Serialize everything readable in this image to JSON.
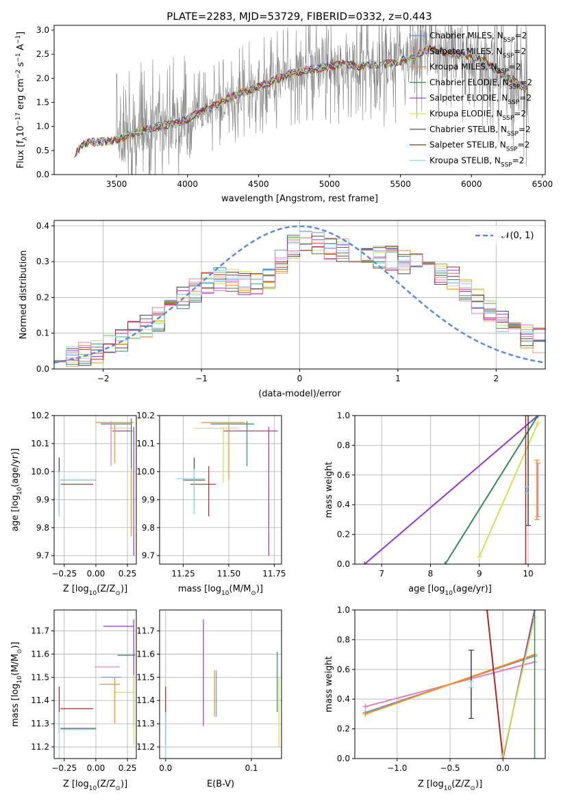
{
  "figure_title": "PLATE=2283, MJD=53729, FIBERID=0332, z=0.443",
  "colors": {
    "chabrier_miles": "#6495ed",
    "salpeter_miles": "#e9967a",
    "kroupa_miles": "#ff8c00",
    "chabrier_elodie": "#2e8b57",
    "salpeter_elodie": "#9932cc",
    "kroupa_elodie": "#c5e84a",
    "chabrier_stelib": "#404040",
    "salpeter_stelib": "#b22222",
    "kroupa_stelib": "#8fd8e8",
    "pink": "#e77fb5",
    "data": "#808080",
    "gaussian": "#5b8bd8"
  },
  "chart_data": [
    {
      "id": "spectrum",
      "type": "line",
      "xlabel": "wavelength [Angstrom, rest frame]",
      "ylabel_parts": [
        "Flux [f",
        "λ",
        "10",
        "−17",
        " erg cm",
        "−2",
        " s",
        "−1",
        " A",
        "−1",
        "]"
      ],
      "xlim": [
        3060,
        6520
      ],
      "ylim": [
        0,
        3.1
      ],
      "xticks": [
        3500,
        4000,
        4500,
        5000,
        5500,
        6000,
        6500
      ],
      "yticks": [
        0.0,
        0.5,
        1.0,
        1.5,
        2.0,
        2.5,
        3.0
      ],
      "x_range": [
        3200,
        6400
      ],
      "continuum_x": [
        3200,
        3250,
        3300,
        3400,
        3500,
        3600,
        3700,
        3800,
        3900,
        4000,
        4100,
        4200,
        4300,
        4400,
        4500,
        4600,
        4700,
        4800,
        4900,
        5000,
        5100,
        5200,
        5300,
        5400,
        5500,
        5600,
        5700,
        5800,
        5900,
        6000,
        6100,
        6200,
        6300,
        6400
      ],
      "continuum_y": [
        0.35,
        0.62,
        0.67,
        0.68,
        0.72,
        0.83,
        0.93,
        1.0,
        1.05,
        1.15,
        1.3,
        1.45,
        1.6,
        1.72,
        1.82,
        1.95,
        2.08,
        2.15,
        2.2,
        2.25,
        2.3,
        2.25,
        2.28,
        2.3,
        2.35,
        2.45,
        2.6,
        2.55,
        2.5,
        2.45,
        2.35,
        2.1,
        1.95,
        1.75
      ],
      "legend": [
        {
          "label": "Chabrier MILES, N",
          "sub": "SSP",
          "tail": "=2",
          "color": "#6495ed"
        },
        {
          "label": "Salpeter MILES, N",
          "sub": "SSP",
          "tail": "=2",
          "color": "#e9967a"
        },
        {
          "label": "Kroupa MILES, N",
          "sub": "SSP",
          "tail": "=2",
          "color": "#ff8c00"
        },
        {
          "label": "Chabrier ELODIE, N",
          "sub": "SSP",
          "tail": "=2",
          "color": "#2e8b57"
        },
        {
          "label": "Salpeter ELODIE, N",
          "sub": "SSP",
          "tail": "=2",
          "color": "#9932cc"
        },
        {
          "label": "Kroupa ELODIE, N",
          "sub": "SSP",
          "tail": "=2",
          "color": "#c5e84a"
        },
        {
          "label": "Chabrier STELIB, N",
          "sub": "SSP",
          "tail": "=2",
          "color": "#404040"
        },
        {
          "label": "Salpeter STELIB, N",
          "sub": "SSP",
          "tail": "=2",
          "color": "#b22222"
        },
        {
          "label": "Kroupa STELIB, N",
          "sub": "SSP",
          "tail": "=2",
          "color": "#8fd8e8"
        }
      ]
    },
    {
      "id": "residuals",
      "type": "histogram",
      "xlabel": "(data-model)/error",
      "ylabel": "Normed distribution",
      "xlim": [
        -2.5,
        2.5
      ],
      "ylim": [
        0,
        0.415
      ],
      "xticks": [
        -2,
        -1,
        0,
        1,
        2
      ],
      "yticks": [
        0.0,
        0.1,
        0.2,
        0.3,
        0.4
      ],
      "bins": 40,
      "legend_label": "𝒩(0, 1)",
      "base_x": [
        -2.4375,
        -2.3125,
        -2.1875,
        -2.0625,
        -1.9375,
        -1.8125,
        -1.6875,
        -1.5625,
        -1.4375,
        -1.3125,
        -1.1875,
        -1.0625,
        -0.9375,
        -0.8125,
        -0.6875,
        -0.5625,
        -0.4375,
        -0.3125,
        -0.1875,
        -0.0625,
        0.0625,
        0.1875,
        0.3125,
        0.4375,
        0.5625,
        0.6875,
        0.8125,
        0.9375,
        1.0625,
        1.1875,
        1.3125,
        1.4375,
        1.5625,
        1.6875,
        1.8125,
        1.9375,
        2.0625,
        2.1875,
        2.3125,
        2.4375
      ],
      "base_y": [
        0.03,
        0.04,
        0.04,
        0.05,
        0.06,
        0.08,
        0.1,
        0.12,
        0.14,
        0.17,
        0.2,
        0.22,
        0.24,
        0.25,
        0.25,
        0.24,
        0.24,
        0.25,
        0.3,
        0.34,
        0.36,
        0.35,
        0.34,
        0.33,
        0.32,
        0.31,
        0.31,
        0.31,
        0.3,
        0.3,
        0.29,
        0.27,
        0.25,
        0.22,
        0.19,
        0.16,
        0.13,
        0.11,
        0.09,
        0.08
      ]
    },
    {
      "id": "age-vs-Z",
      "type": "errorbar",
      "xlabel_parts": [
        "Z [log",
        "10",
        "(Z/Z",
        "⊙",
        ")]"
      ],
      "ylabel_parts": [
        "age  [log",
        "10",
        "(age/yr)]"
      ],
      "xlim": [
        -0.33,
        0.32
      ],
      "ylim": [
        9.67,
        10.2
      ],
      "xticks": [
        -0.25,
        0.0,
        0.25
      ],
      "xticklabels": [
        "−0.25",
        "0.00",
        "0.25"
      ],
      "yticks": [
        9.7,
        9.8,
        9.9,
        10.0,
        10.1,
        10.2
      ],
      "points": [
        {
          "x": -0.15,
          "xerr": 0.13,
          "y": 9.955,
          "yerr": 0.0,
          "color": "#b22222"
        },
        {
          "x": -0.14,
          "xerr": 0.14,
          "y": 9.97,
          "yerr": 0.0,
          "color": "#404040"
        },
        {
          "x": -0.14,
          "xerr": 0.14,
          "y": 9.97,
          "yerr": 0.0,
          "color": "#8fd8e8"
        },
        {
          "x": -0.29,
          "xerr": 0.0,
          "y": 9.95,
          "yerr": 0.1,
          "color": "#404040"
        },
        {
          "x": -0.29,
          "xerr": 0.0,
          "y": 9.92,
          "yerr": 0.08,
          "color": "#8fd8e8"
        },
        {
          "x": 0.15,
          "xerr": 0.15,
          "y": 10.175,
          "yerr": 0.0,
          "color": "#ff8c00"
        },
        {
          "x": 0.16,
          "xerr": 0.12,
          "y": 10.17,
          "yerr": 0.0,
          "color": "#2e8b57"
        },
        {
          "x": 0.21,
          "xerr": 0.08,
          "y": 10.145,
          "yerr": 0.0,
          "color": "#9932cc"
        },
        {
          "x": 0.2,
          "xerr": 0.09,
          "y": 10.155,
          "yerr": 0.0,
          "color": "#c5e84a"
        },
        {
          "x": 0.12,
          "xerr": 0.0,
          "y": 10.1,
          "yerr": 0.08,
          "color": "#e77fb5"
        },
        {
          "x": 0.15,
          "xerr": 0.0,
          "y": 10.1,
          "yerr": 0.07,
          "color": "#ff8c00"
        },
        {
          "x": 0.3,
          "xerr": 0.0,
          "y": 9.93,
          "yerr": 0.23,
          "color": "#9932cc"
        },
        {
          "x": 0.28,
          "xerr": 0.0,
          "y": 9.97,
          "yerr": 0.2,
          "color": "#ff8c00"
        },
        {
          "x": 0.28,
          "xerr": 0.0,
          "y": 10.1,
          "yerr": 0.09,
          "color": "#2e8b57"
        }
      ]
    },
    {
      "id": "age-vs-mass",
      "type": "errorbar",
      "xlabel_parts": [
        "mass [log",
        "10",
        "(M/M",
        "⊙",
        ")]"
      ],
      "ylabel": "",
      "xlim": [
        11.12,
        11.79
      ],
      "ylim": [
        9.67,
        10.2
      ],
      "xticks": [
        11.25,
        11.5,
        11.75
      ],
      "xticklabels": [
        "11.25",
        "11.50",
        "11.75"
      ],
      "yticks": [
        9.7,
        9.8,
        9.9,
        10.0,
        10.1,
        10.2
      ],
      "points": [
        {
          "x": 11.36,
          "xerr": 0.07,
          "y": 9.955,
          "yerr": 0.0,
          "color": "#b22222"
        },
        {
          "x": 11.31,
          "xerr": 0.06,
          "y": 9.97,
          "yerr": 0.0,
          "color": "#404040"
        },
        {
          "x": 11.29,
          "xerr": 0.08,
          "y": 9.975,
          "yerr": 0.0,
          "color": "#8fd8e8"
        },
        {
          "x": 11.31,
          "xerr": 0.0,
          "y": 9.95,
          "yerr": 0.1,
          "color": "#404040"
        },
        {
          "x": 11.31,
          "xerr": 0.0,
          "y": 9.93,
          "yerr": 0.08,
          "color": "#8fd8e8"
        },
        {
          "x": 11.39,
          "xerr": 0.0,
          "y": 9.93,
          "yerr": 0.09,
          "color": "#b22222"
        },
        {
          "x": 11.47,
          "xerr": 0.12,
          "y": 10.175,
          "yerr": 0.0,
          "color": "#ff8c00"
        },
        {
          "x": 11.52,
          "xerr": 0.12,
          "y": 10.17,
          "yerr": 0.0,
          "color": "#2e8b57"
        },
        {
          "x": 11.43,
          "xerr": 0.12,
          "y": 10.155,
          "yerr": 0.0,
          "color": "#c5e84a"
        },
        {
          "x": 11.62,
          "xerr": 0.15,
          "y": 10.145,
          "yerr": 0.0,
          "color": "#9932cc"
        },
        {
          "x": 11.5,
          "xerr": 0.0,
          "y": 10.07,
          "yerr": 0.1,
          "color": "#ff8c00"
        },
        {
          "x": 11.6,
          "xerr": 0.0,
          "y": 10.1,
          "yerr": 0.08,
          "color": "#2e8b57"
        },
        {
          "x": 11.47,
          "xerr": 0.0,
          "y": 10.06,
          "yerr": 0.1,
          "color": "#c5e84a"
        },
        {
          "x": 11.72,
          "xerr": 0.0,
          "y": 9.93,
          "yerr": 0.23,
          "color": "#9932cc"
        }
      ]
    },
    {
      "id": "weight-vs-age",
      "type": "line-errorbar",
      "xlabel_parts": [
        "age  [log",
        "10",
        "(age/yr)]"
      ],
      "ylabel": "mass weight",
      "xlim": [
        6.45,
        10.35
      ],
      "ylim": [
        0,
        1.0
      ],
      "xticks": [
        7,
        8,
        9,
        10
      ],
      "yticks": [
        0.0,
        0.2,
        0.4,
        0.6,
        0.8,
        1.0
      ],
      "lines": [
        {
          "x": [
            6.65,
            10.2
          ],
          "y": [
            0.0,
            1.0
          ],
          "color": "#9932cc"
        },
        {
          "x": [
            8.3,
            10.2
          ],
          "y": [
            0.0,
            1.0
          ],
          "color": "#2e8b57"
        },
        {
          "x": [
            9.0,
            10.2
          ],
          "y": [
            0.05,
            0.95
          ],
          "color": "#c5e84a"
        }
      ],
      "errorbars": [
        {
          "x": 9.95,
          "y": 0.5,
          "yerr": 0.5,
          "color": "#b22222"
        },
        {
          "x": 10.0,
          "y": 0.63,
          "yerr": 0.37,
          "color": "#404040"
        },
        {
          "x": 9.97,
          "y": 0.5,
          "yerr": 0.02,
          "color": "#8fd8e8"
        },
        {
          "x": 10.18,
          "y": 0.5,
          "yerr": 0.2,
          "color": "#ff8c00"
        },
        {
          "x": 10.2,
          "y": 0.5,
          "yerr": 0.18,
          "color": "#e77fb5"
        }
      ]
    },
    {
      "id": "mass-vs-Z",
      "type": "errorbar",
      "xlabel_parts": [
        "Z [log",
        "10",
        "(Z/Z",
        "⊙",
        ")]"
      ],
      "ylabel_parts": [
        "mass [log",
        "10",
        "(M/M",
        "⊙",
        ")]"
      ],
      "xlim": [
        -0.33,
        0.32
      ],
      "ylim": [
        11.15,
        11.79
      ],
      "xticks": [
        -0.25,
        0.0,
        0.25
      ],
      "xticklabels": [
        "−0.25",
        "0.00",
        "0.25"
      ],
      "yticks": [
        11.2,
        11.3,
        11.4,
        11.5,
        11.6,
        11.7
      ],
      "points": [
        {
          "x": -0.15,
          "xerr": 0.13,
          "y": 11.365,
          "yerr": 0.0,
          "color": "#b22222"
        },
        {
          "x": -0.14,
          "xerr": 0.14,
          "y": 11.28,
          "yerr": 0.0,
          "color": "#404040"
        },
        {
          "x": -0.14,
          "xerr": 0.14,
          "y": 11.275,
          "yerr": 0.0,
          "color": "#8fd8e8"
        },
        {
          "x": -0.29,
          "xerr": 0.0,
          "y": 11.36,
          "yerr": 0.1,
          "color": "#b22222"
        },
        {
          "x": -0.29,
          "xerr": 0.0,
          "y": 11.25,
          "yerr": 0.1,
          "color": "#8fd8e8"
        },
        {
          "x": 0.18,
          "xerr": 0.12,
          "y": 11.72,
          "yerr": 0.0,
          "color": "#9932cc"
        },
        {
          "x": 0.24,
          "xerr": 0.07,
          "y": 11.595,
          "yerr": 0.0,
          "color": "#2e8b57"
        },
        {
          "x": 0.09,
          "xerr": 0.1,
          "y": 11.545,
          "yerr": 0.0,
          "color": "#e77fb5"
        },
        {
          "x": 0.12,
          "xerr": 0.08,
          "y": 11.5,
          "yerr": 0.0,
          "color": "#6495ed"
        },
        {
          "x": 0.11,
          "xerr": 0.08,
          "y": 11.47,
          "yerr": 0.0,
          "color": "#ff8c00"
        },
        {
          "x": 0.23,
          "xerr": 0.08,
          "y": 11.435,
          "yerr": 0.0,
          "color": "#c5e84a"
        },
        {
          "x": 0.15,
          "xerr": 0.0,
          "y": 11.4,
          "yerr": 0.1,
          "color": "#ff8c00"
        },
        {
          "x": 0.3,
          "xerr": 0.0,
          "y": 11.52,
          "yerr": 0.23,
          "color": "#9932cc"
        },
        {
          "x": 0.3,
          "xerr": 0.0,
          "y": 11.36,
          "yerr": 0.15,
          "color": "#c5e84a"
        }
      ]
    },
    {
      "id": "mass-vs-ebv",
      "type": "errorbar",
      "xlabel": "E(B-V)",
      "ylabel": "",
      "xlim": [
        -0.007,
        0.135
      ],
      "ylim": [
        11.15,
        11.79
      ],
      "xticks": [
        0.0,
        0.1
      ],
      "xticklabels": [
        "0.0",
        "0.1"
      ],
      "yticks": [
        11.2,
        11.3,
        11.4,
        11.5,
        11.6,
        11.7
      ],
      "points": [
        {
          "x": 0.0,
          "xerr": 0.0,
          "y": 11.39,
          "yerr": 0.07,
          "color": "#b22222"
        },
        {
          "x": 0.0,
          "xerr": 0.0,
          "y": 11.28,
          "yerr": 0.07,
          "color": "#404040"
        },
        {
          "x": 0.0,
          "xerr": 0.0,
          "y": 11.25,
          "yerr": 0.1,
          "color": "#8fd8e8"
        },
        {
          "x": 0.044,
          "xerr": 0.0,
          "y": 11.52,
          "yerr": 0.23,
          "color": "#9932cc"
        },
        {
          "x": 0.057,
          "xerr": 0.0,
          "y": 11.43,
          "yerr": 0.1,
          "color": "#ff8c00"
        },
        {
          "x": 0.059,
          "xerr": 0.0,
          "y": 11.43,
          "yerr": 0.1,
          "color": "#6495ed"
        },
        {
          "x": 0.13,
          "xerr": 0.0,
          "y": 11.48,
          "yerr": 0.13,
          "color": "#2e8b57"
        },
        {
          "x": 0.132,
          "xerr": 0.0,
          "y": 11.35,
          "yerr": 0.15,
          "color": "#c5e84a"
        }
      ]
    },
    {
      "id": "weight-vs-Z",
      "type": "line-errorbar",
      "xlabel_parts": [
        "Z [log",
        "10",
        "(Z/Z",
        "⊙",
        ")]"
      ],
      "ylabel": "mass weight",
      "xlim": [
        -1.4,
        0.4
      ],
      "ylim": [
        0,
        1.0
      ],
      "xticks": [
        -1.0,
        -0.5,
        0.0
      ],
      "xticklabels": [
        "−1.0",
        "−0.5",
        "0.0"
      ],
      "yticks": [
        0.0,
        0.2,
        0.4,
        0.6,
        0.8,
        1.0
      ],
      "lines": [
        {
          "x": [
            -1.3,
            0.3
          ],
          "y": [
            0.35,
            0.65
          ],
          "color": "#e77fb5"
        },
        {
          "x": [
            -1.3,
            0.3
          ],
          "y": [
            0.31,
            0.69
          ],
          "color": "#6495ed"
        },
        {
          "x": [
            -1.3,
            0.3
          ],
          "y": [
            0.3,
            0.7
          ],
          "color": "#ff8c00"
        },
        {
          "x": [
            -0.15,
            0.0
          ],
          "y": [
            1.0,
            0.0
          ],
          "color": "#b22222"
        },
        {
          "x": [
            0.0,
            0.3
          ],
          "y": [
            0.0,
            1.0
          ],
          "color": "#9932cc"
        },
        {
          "x": [
            0.0,
            0.3
          ],
          "y": [
            0.02,
            0.95
          ],
          "color": "#c5e84a"
        }
      ],
      "errorbars": [
        {
          "x": -0.3,
          "y": 0.5,
          "yerr": 0.23,
          "color": "#404040"
        },
        {
          "x": -0.3,
          "y": 0.5,
          "yerr": 0.02,
          "color": "#8fd8e8"
        },
        {
          "x": 0.3,
          "y": 0.5,
          "yerr": 0.5,
          "color": "#2e8b57"
        }
      ]
    }
  ]
}
